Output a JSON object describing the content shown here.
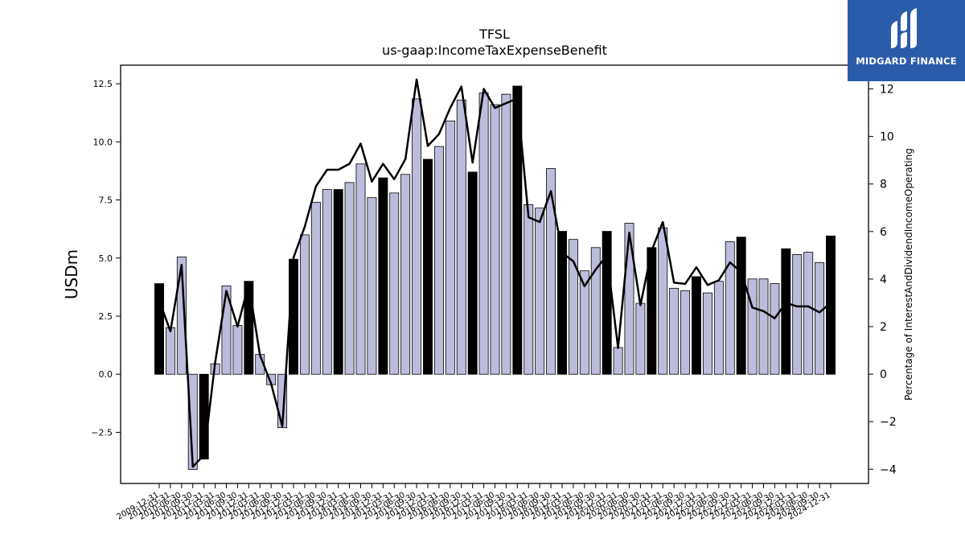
{
  "chart_data": {
    "type": "bar",
    "title": "TFSL",
    "subtitle": "us-gaap:IncomeTaxExpenseBenefit",
    "ylabel": "USDm",
    "y2label": "Percentage of InterestAndDividendIncomeOperating",
    "ylim": [
      -4.7,
      13.3
    ],
    "y2lim": [
      -4.6,
      13.0
    ],
    "yticks": [
      -2.5,
      0.0,
      2.5,
      5.0,
      7.5,
      10.0,
      12.5
    ],
    "ytick_labels": [
      "−2.5",
      "0.0",
      "2.5",
      "5.0",
      "7.5",
      "10.0",
      "12.5"
    ],
    "y2ticks": [
      -4,
      -2,
      0,
      2,
      4,
      6,
      8,
      10,
      12
    ],
    "y2tick_labels": [
      "−4",
      "−2",
      "0",
      "2",
      "4",
      "6",
      "8",
      "10",
      "12"
    ],
    "colors": {
      "quarter_bar": "#bcbcdc",
      "annual_bar": "#000000",
      "line": "#000000"
    },
    "categories": [
      "2009-12-31",
      "2010-03-31",
      "2010-06-30",
      "2010-09-30",
      "2010-12-31",
      "2011-03-31",
      "2011-06-30",
      "2011-09-30",
      "2011-12-31",
      "2012-03-31",
      "2012-06-30",
      "2012-09-30",
      "2012-12-31",
      "2013-03-31",
      "2013-06-30",
      "2013-09-30",
      "2013-12-31",
      "2014-03-31",
      "2014-06-30",
      "2014-09-30",
      "2014-12-31",
      "2015-03-31",
      "2015-06-30",
      "2015-09-30",
      "2015-12-31",
      "2016-03-31",
      "2016-06-30",
      "2016-09-30",
      "2016-12-31",
      "2017-03-31",
      "2017-06-30",
      "2017-09-30",
      "2017-12-31",
      "2018-03-31",
      "2018-06-30",
      "2018-09-30",
      "2018-12-31",
      "2019-03-31",
      "2019-06-30",
      "2019-09-30",
      "2019-12-31",
      "2020-03-31",
      "2020-06-30",
      "2020-09-30",
      "2020-12-31",
      "2021-03-31",
      "2021-06-30",
      "2021-09-30",
      "2021-12-31",
      "2022-03-31",
      "2022-06-30",
      "2022-09-30",
      "2022-12-31",
      "2023-03-31",
      "2023-06-30",
      "2023-09-30",
      "2023-12-31",
      "2024-03-31",
      "2024-06-30",
      "2024-09-30",
      "2024-12-31"
    ],
    "tick_labels": [
      "2009-12-31",
      "2010-03-31",
      "2010-06-30",
      "2010-09-30",
      "2010-12-31",
      "2011-03-31",
      "2011-06-30",
      "2011-09-30",
      "2011-12-31",
      "2012-03-31",
      "2012-06-30",
      "2012-09-30",
      "2012-12-31",
      "2013-03-31",
      "2013-06-30",
      "2013-09-30",
      "2013-12-31",
      "2014-03-31",
      "2014-06-30",
      "2014-09-30",
      "2014-12-31",
      "2015-03-31",
      "2015-06-30",
      "2015-09-30",
      "2015-12-31",
      "2016-03-31",
      "2016-06-30",
      "2016-09-30",
      "2016-12-31",
      "2017-03-31",
      "2017-06-30",
      "2017-09-30",
      "2017-12-31",
      "2018-03-31",
      "2018-06-30",
      "2018-09-30",
      "2018-12-31",
      "2019-03-31",
      "2019-06-30",
      "2019-09-30",
      "2019-12-31",
      "2020-03-31",
      "2020-06-30",
      "2020-09-30",
      "2020-12-31",
      "2021-03-31",
      "2021-06-30",
      "2021-09-30",
      "2021-12-31",
      "2022-03-31",
      "2022-06-30",
      "2022-09-30",
      "2022-12-31",
      "2023-03-31",
      "2023-06-30",
      "2023-09-30",
      "2023-12-31",
      "2024-03-31",
      "2024-06-30",
      "2024-09-30",
      "2024-12-31"
    ],
    "annual": [
      true,
      false,
      false,
      false,
      true,
      false,
      false,
      false,
      true,
      false,
      false,
      false,
      true,
      false,
      false,
      false,
      true,
      false,
      false,
      false,
      true,
      false,
      false,
      false,
      true,
      false,
      false,
      false,
      true,
      false,
      false,
      false,
      true,
      false,
      false,
      false,
      true,
      false,
      false,
      false,
      true,
      false,
      false,
      false,
      true,
      false,
      false,
      false,
      true,
      false,
      false,
      false,
      true,
      false,
      false,
      false,
      true,
      false,
      false,
      false,
      true
    ],
    "values": [
      3.9,
      2.0,
      5.05,
      -4.1,
      -3.65,
      0.45,
      3.8,
      2.1,
      4.0,
      0.85,
      -0.45,
      -2.3,
      4.95,
      6.0,
      7.4,
      7.95,
      7.95,
      8.25,
      9.05,
      7.6,
      8.45,
      7.8,
      8.6,
      11.85,
      9.25,
      9.8,
      10.9,
      11.8,
      8.7,
      12.1,
      11.6,
      12.05,
      12.4,
      7.3,
      7.15,
      8.85,
      6.15,
      5.8,
      4.45,
      5.45,
      6.15,
      1.15,
      6.5,
      3.05,
      5.45,
      6.3,
      3.7,
      3.6,
      4.2,
      3.5,
      4.0,
      5.7,
      5.9,
      4.1,
      4.1,
      3.9,
      5.4,
      5.15,
      5.25,
      4.8,
      5.95
    ],
    "pct": [
      3.1,
      1.8,
      4.6,
      -3.9,
      -3.4,
      0.5,
      3.5,
      2.0,
      3.8,
      0.8,
      -0.4,
      -2.2,
      4.9,
      6.2,
      7.9,
      8.6,
      8.6,
      8.85,
      9.7,
      8.1,
      8.85,
      8.2,
      9.05,
      12.4,
      9.6,
      10.1,
      11.2,
      12.1,
      8.9,
      12.0,
      11.2,
      11.4,
      11.6,
      6.6,
      6.4,
      7.7,
      5.1,
      4.75,
      3.7,
      4.4,
      5.0,
      1.1,
      5.95,
      2.9,
      5.2,
      6.4,
      3.85,
      3.8,
      4.5,
      3.75,
      3.95,
      4.7,
      4.3,
      2.8,
      2.65,
      2.35,
      3.0,
      2.85,
      2.85,
      2.6,
      3.0
    ]
  },
  "logo": {
    "name": "MIDGARD FINANCE"
  }
}
